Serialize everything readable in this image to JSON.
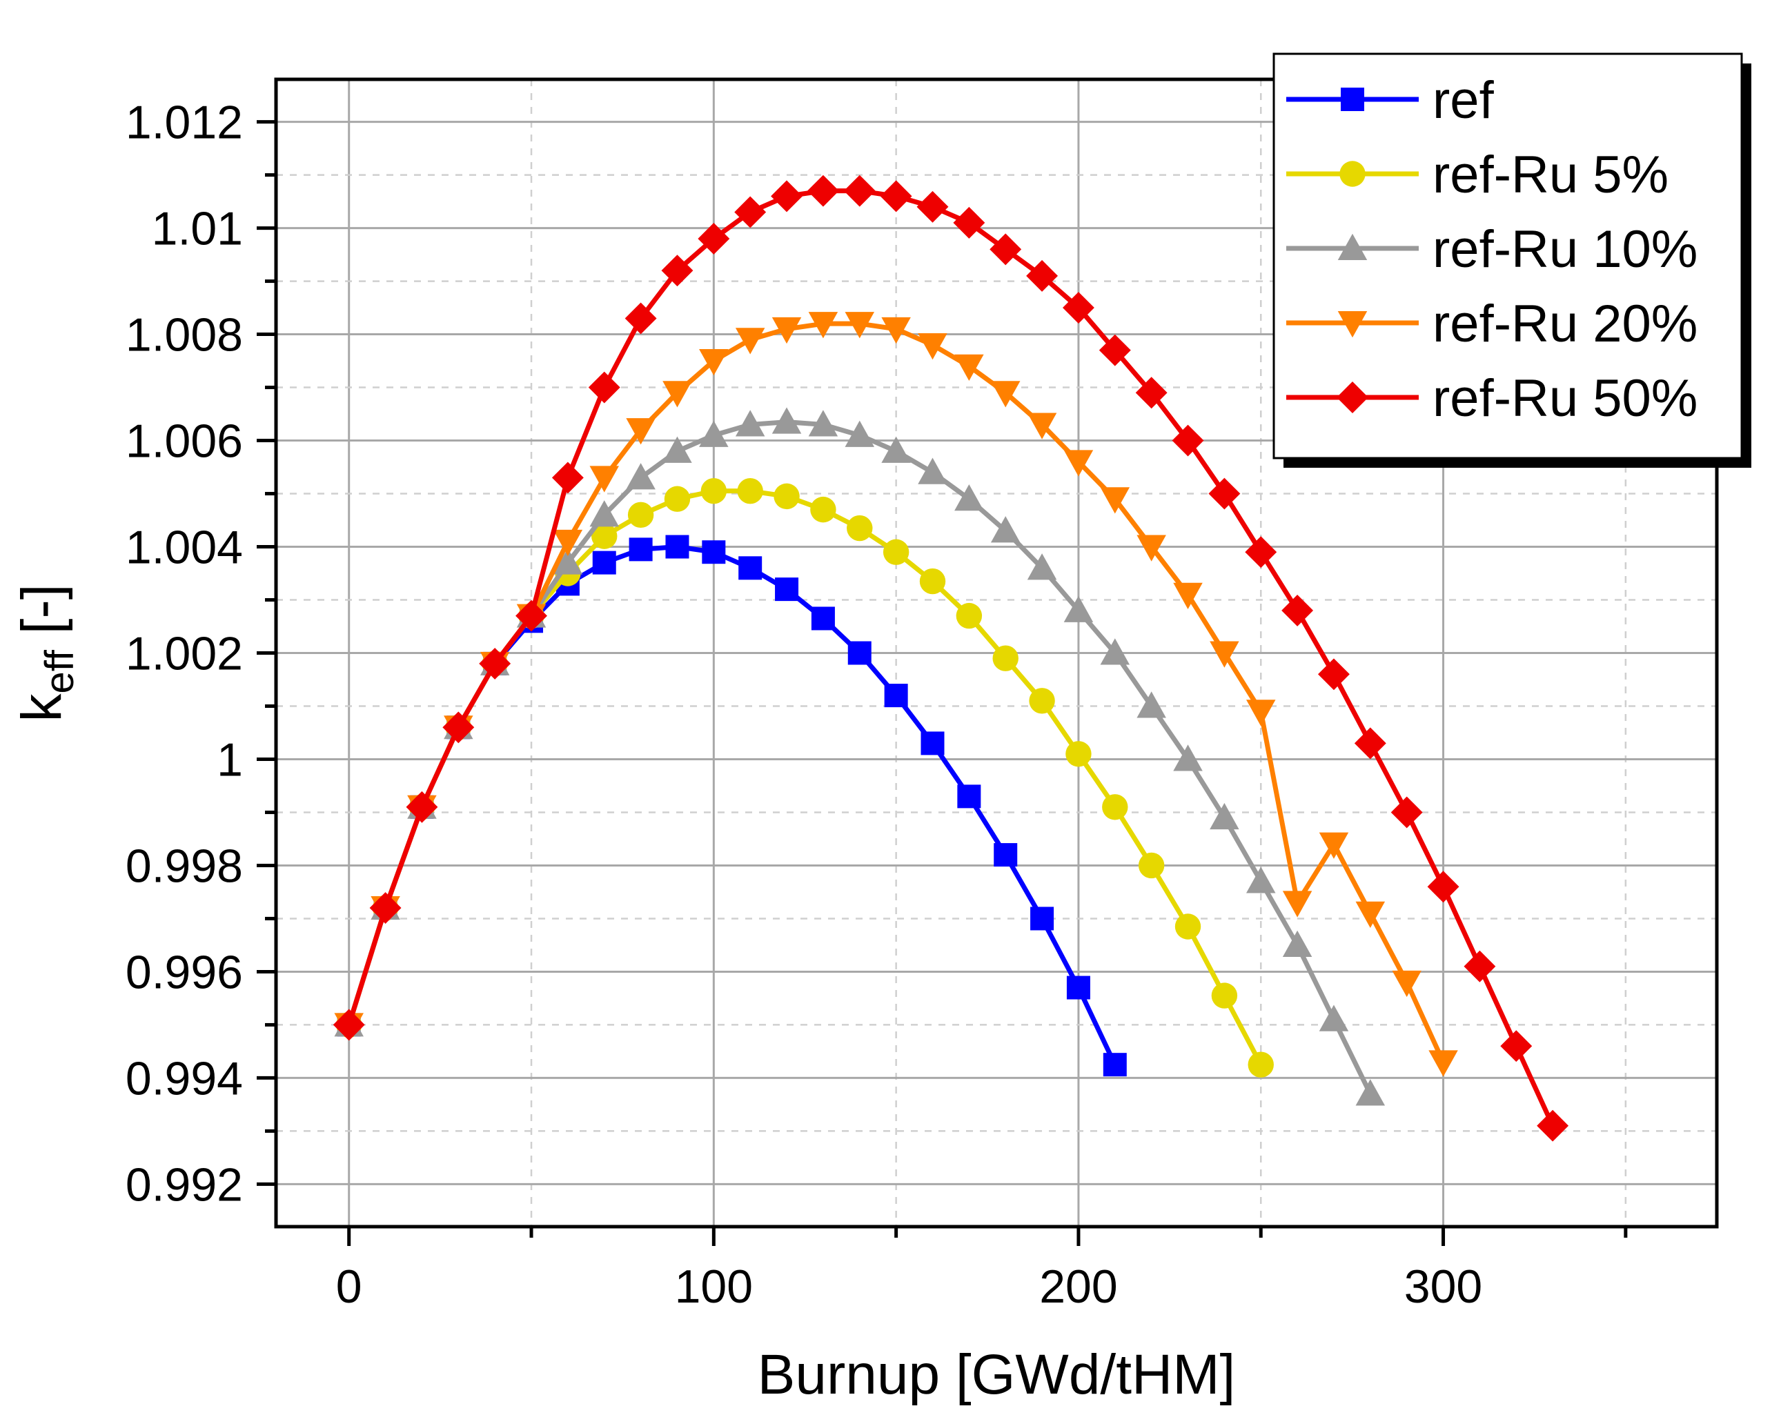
{
  "chart_data": {
    "type": "line",
    "title": "",
    "xlabel": "Burnup [GWd/tHM]",
    "ylabel_main": "k",
    "ylabel_sub": "eff",
    "ylabel_suffix": " [-]",
    "xlim": [
      -20,
      375
    ],
    "ylim": [
      0.9912,
      1.0128
    ],
    "xticks": [
      0,
      100,
      200,
      300
    ],
    "xtick_labels": [
      "0",
      "100",
      "200",
      "300"
    ],
    "yticks": [
      0.992,
      0.994,
      0.996,
      0.998,
      1.0,
      1.002,
      1.004,
      1.006,
      1.008,
      1.01,
      1.012
    ],
    "ytick_labels": [
      "0.992",
      "0.994",
      "0.996",
      "0.998",
      "1",
      "1.002",
      "1.004",
      "1.006",
      "1.008",
      "1.01",
      "1.012"
    ],
    "grid": true,
    "legend_position": "top-right",
    "series": [
      {
        "name": "ref",
        "color": "#0000ff",
        "marker": "square",
        "x": [
          0,
          10,
          20,
          30,
          40,
          50,
          60,
          70,
          80,
          90,
          100,
          110,
          120,
          130,
          140,
          150,
          160,
          170,
          180,
          190,
          200,
          210
        ],
        "y": [
          0.995,
          0.9972,
          0.9991,
          1.0006,
          1.0018,
          1.0026,
          1.0033,
          1.0037,
          1.00395,
          1.004,
          1.0039,
          1.0036,
          1.0032,
          1.00265,
          1.002,
          1.0012,
          1.0003,
          0.9993,
          0.9982,
          0.997,
          0.9957,
          0.99425
        ]
      },
      {
        "name": "ref-Ru 5%",
        "color": "#e6d800",
        "marker": "circle",
        "x": [
          0,
          10,
          20,
          30,
          40,
          50,
          60,
          70,
          80,
          90,
          100,
          110,
          120,
          130,
          140,
          150,
          160,
          170,
          180,
          190,
          200,
          210,
          220,
          230,
          240,
          250
        ],
        "y": [
          0.995,
          0.9972,
          0.9991,
          1.0006,
          1.0018,
          1.0027,
          1.0035,
          1.0042,
          1.0046,
          1.0049,
          1.00505,
          1.00505,
          1.00495,
          1.0047,
          1.00435,
          1.0039,
          1.00335,
          1.0027,
          1.0019,
          1.0011,
          1.0001,
          0.9991,
          0.998,
          0.99685,
          0.99555,
          0.99425
        ]
      },
      {
        "name": "ref-Ru 10%",
        "color": "#999999",
        "marker": "triangle-up",
        "x": [
          0,
          10,
          20,
          30,
          40,
          50,
          60,
          70,
          80,
          90,
          100,
          110,
          120,
          130,
          140,
          150,
          160,
          170,
          180,
          190,
          200,
          210,
          220,
          230,
          240,
          250,
          260,
          270,
          280
        ],
        "y": [
          0.995,
          0.9972,
          0.9991,
          1.0006,
          1.0018,
          1.0027,
          1.0037,
          1.0046,
          1.0053,
          1.0058,
          1.0061,
          1.0063,
          1.00635,
          1.0063,
          1.0061,
          1.0058,
          1.0054,
          1.0049,
          1.0043,
          1.0036,
          1.0028,
          1.002,
          1.001,
          1.0,
          0.9989,
          0.9977,
          0.9965,
          0.9951,
          0.9937
        ]
      },
      {
        "name": "ref-Ru 20%",
        "color": "#ff8000",
        "marker": "triangle-down",
        "x": [
          0,
          10,
          20,
          30,
          40,
          50,
          60,
          70,
          80,
          90,
          100,
          110,
          120,
          130,
          140,
          150,
          160,
          170,
          180,
          190,
          200,
          210,
          220,
          230,
          240,
          250,
          260,
          270,
          280,
          290,
          300
        ],
        "y": [
          0.995,
          0.9972,
          0.9991,
          1.0006,
          1.0018,
          1.0027,
          1.0041,
          1.0053,
          1.0062,
          1.0069,
          1.0075,
          1.0079,
          1.0081,
          1.0082,
          1.0082,
          1.0081,
          1.0078,
          1.0074,
          1.0069,
          1.0063,
          1.0056,
          1.0049,
          1.004,
          1.0031,
          1.002,
          1.0009,
          0.9973,
          0.9984,
          0.9971,
          0.9958,
          0.9943
        ]
      },
      {
        "name": "ref-Ru 50%",
        "color": "#ee0000",
        "marker": "diamond",
        "x": [
          0,
          10,
          20,
          30,
          40,
          50,
          60,
          70,
          80,
          90,
          100,
          110,
          120,
          130,
          140,
          150,
          160,
          170,
          180,
          190,
          200,
          210,
          220,
          230,
          240,
          250,
          260,
          270,
          280,
          290,
          300,
          310,
          320,
          330
        ],
        "y": [
          0.995,
          0.9972,
          0.9991,
          1.0006,
          1.0018,
          1.0027,
          1.0053,
          1.007,
          1.0083,
          1.0092,
          1.0098,
          1.0103,
          1.0106,
          1.0107,
          1.0107,
          1.0106,
          1.0104,
          1.0101,
          1.0096,
          1.0091,
          1.0085,
          1.0077,
          1.0069,
          1.006,
          1.005,
          1.0039,
          1.0028,
          1.0016,
          1.0003,
          0.999,
          0.9976,
          0.9961,
          0.9946,
          0.9931
        ]
      }
    ]
  }
}
